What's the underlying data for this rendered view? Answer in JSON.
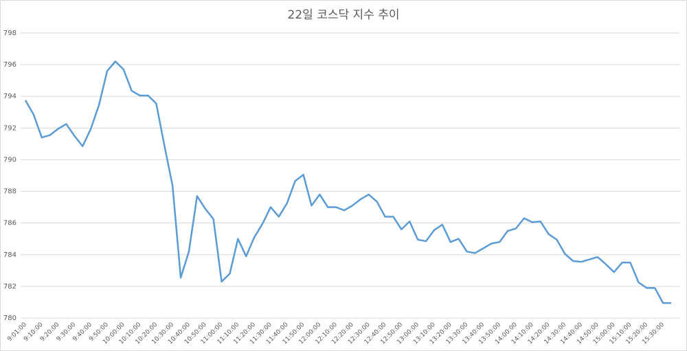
{
  "chart_data": {
    "type": "line",
    "title": "22일 코스닥 지수 추이",
    "categories": [
      "9:01:00",
      null,
      "9:10:00",
      null,
      "9:20:00",
      null,
      "9:30:00",
      null,
      "9:40:00",
      null,
      "9:50:00",
      null,
      "10:00:00",
      null,
      "10:10:00",
      null,
      "10:20:00",
      null,
      "10:30:00",
      null,
      "10:40:00",
      null,
      "10:50:00",
      null,
      "11:00:00",
      null,
      "11:10:00",
      null,
      "11:20:00",
      null,
      "11:30:00",
      null,
      "11:40:00",
      null,
      "11:50:00",
      null,
      "12:00:00",
      null,
      "12:10:00",
      null,
      "12:20:00",
      null,
      "12:30:00",
      null,
      "12:40:00",
      null,
      "12:50:00",
      null,
      "13:00:00",
      null,
      "13:10:00",
      null,
      "13:20:00",
      null,
      "13:30:00",
      null,
      "13:40:00",
      null,
      "13:50:00",
      null,
      "14:00:00",
      null,
      "14:10:00",
      null,
      "14:20:00",
      null,
      "14:30:00",
      null,
      "14:40:00",
      null,
      "14:50:00",
      null,
      "15:00:00",
      null,
      "15:10:00",
      null,
      "15:20:00",
      null,
      "15:30:00",
      null
    ],
    "series": [
      {
        "color": "#5b9bd5",
        "values": [
          793.75,
          792.85,
          791.4,
          791.55,
          791.95,
          792.25,
          791.5,
          790.85,
          791.95,
          793.45,
          795.6,
          796.2,
          795.7,
          794.35,
          794.05,
          794.05,
          793.55,
          790.9,
          788.35,
          782.55,
          784.2,
          787.7,
          786.9,
          786.25,
          782.3,
          782.8,
          785.0,
          783.9,
          785.1,
          785.95,
          787.0,
          786.4,
          787.25,
          788.65,
          789.05,
          787.1,
          787.8,
          787.0,
          787.0,
          786.8,
          787.1,
          787.5,
          787.8,
          787.35,
          786.4,
          786.4,
          785.6,
          786.1,
          784.95,
          784.85,
          785.55,
          785.9,
          784.8,
          785.0,
          784.2,
          784.1,
          784.4,
          784.7,
          784.8,
          785.5,
          785.65,
          786.3,
          786.05,
          786.1,
          785.3,
          784.95,
          784.05,
          783.6,
          783.55,
          783.7,
          783.85,
          783.4,
          782.9,
          783.5,
          783.5,
          782.25,
          781.9,
          781.9,
          780.95,
          780.95
        ]
      }
    ],
    "ylim": [
      780,
      798
    ],
    "yticks": [
      780,
      782,
      784,
      786,
      788,
      790,
      792,
      794,
      796,
      798
    ],
    "grid": true
  }
}
